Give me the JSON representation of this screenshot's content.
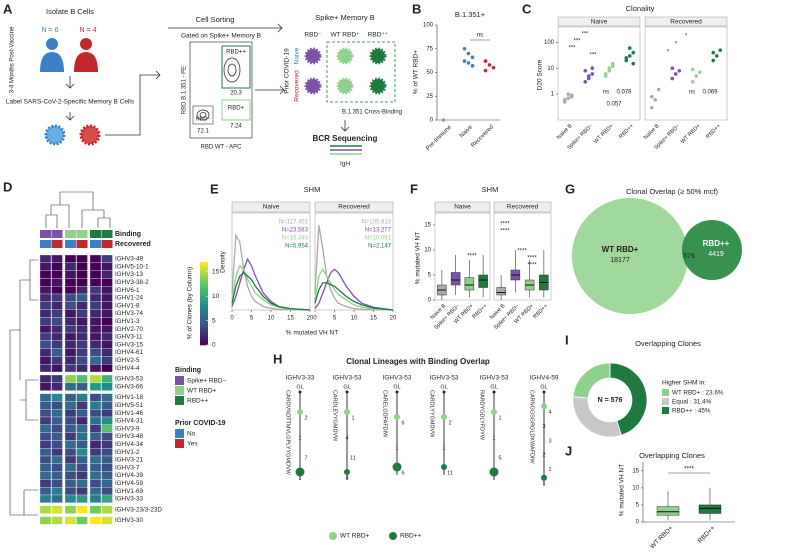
{
  "A": {
    "letter": "A",
    "timepoint": "3-4 Months Post-Vaccine",
    "isolate": "Isolate B Cells",
    "n_naive": "N = 6",
    "n_recovered": "N = 4",
    "label": "Label SARS-CoV-2-Specific Memory B Cells",
    "sorting": "Cell Sorting",
    "gate": "Gated on Spike+ Memory B",
    "gates": [
      {
        "name": "RBD++",
        "pct": "20.3"
      },
      {
        "name": "RBD−",
        "pct": "72.1"
      },
      {
        "name": "RBD+",
        "pct": "7.24"
      }
    ],
    "y_axis": "RBD B.1.351 - PE",
    "x_axis": "RBD WT - APC",
    "grid_title": "Spike+ Memory B",
    "grid_columns": [
      "RBD⁻",
      "WT RBD⁺",
      "RBD⁺⁺"
    ],
    "grid_rows_title": "Prior COVID-19",
    "grid_rows": [
      "Naive",
      "Recovered"
    ],
    "cross": "B.1.351 Cross-Binding",
    "bcr": "BCR Sequencing",
    "igh": "IgH"
  },
  "B": {
    "letter": "B",
    "title": "B.1.351+",
    "ylabel": "% of WT RBD+",
    "ylim": [
      0,
      100
    ],
    "yticks": [
      0,
      25,
      50,
      75,
      100
    ],
    "categories": [
      "Pre-Immune",
      "Naive",
      "Recovered"
    ],
    "colors": [
      "#999999",
      "#3b7fc4",
      "#c0282e"
    ],
    "points": [
      [
        0
      ],
      [
        75,
        70,
        66,
        62,
        60,
        57
      ],
      [
        62,
        58,
        55,
        52
      ]
    ],
    "annotation": "ns"
  },
  "C": {
    "letter": "C",
    "title": "Clonality",
    "facets": [
      "Naive",
      "Recovered"
    ],
    "ylabel": "D20 Score",
    "log": true,
    "ylim": [
      0.1,
      300
    ],
    "yticks": [
      1,
      10,
      100
    ],
    "categories": [
      "Naive B",
      "Spike+ RBD−",
      "WT RBD+",
      "RBD++"
    ],
    "colors": [
      "#aaaaaa",
      "#7b52ab",
      "#8fd18b",
      "#1f7a3f"
    ],
    "points": [
      [
        [
          0.5,
          0.7,
          0.8,
          0.6,
          1,
          0.9
        ],
        [
          3,
          5,
          6,
          8,
          4,
          10
        ],
        [
          5,
          8,
          12,
          6,
          10,
          15
        ],
        [
          20,
          30,
          40,
          25,
          60,
          15
        ]
      ],
      [
        [
          0.3,
          0.6,
          1.5,
          0.8
        ],
        [
          4,
          6,
          8,
          10
        ],
        [
          3,
          5,
          7,
          9
        ],
        [
          20,
          30,
          50,
          40
        ]
      ]
    ],
    "annotations": [
      [
        "***",
        "***",
        "***",
        "***",
        "ns",
        "0.078",
        "0.057"
      ],
      [
        "*",
        "*",
        "*",
        "ns",
        "0.069"
      ]
    ]
  },
  "D": {
    "letter": "D",
    "legend_title": "% of Clones (by Column)",
    "clim": [
      0,
      17
    ],
    "colorbar_ticks": [
      0,
      5,
      10,
      15
    ],
    "annotation_rows": [
      "Binding",
      "Recovered"
    ],
    "binding_title": "Binding",
    "binding": [
      "Spike+ RBD−",
      "WT RBD+",
      "RBD++"
    ],
    "binding_colors": [
      "#7b52ab",
      "#8fd18b",
      "#1f7a3f"
    ],
    "prior_title": "Prior COVID-19",
    "prior": [
      "No",
      "Yes"
    ],
    "prior_colors": [
      "#3b7fc4",
      "#c0282e"
    ],
    "genes": [
      "IGHV3-49",
      "IGHV5-10-1",
      "IGHV3-13",
      "IGHV3-38-2",
      "IGHV6-1",
      "IGHV1-24",
      "IGHV1-8",
      "IGHV3-74",
      "IGHV1-3",
      "IGHV2-70",
      "IGHV3-11",
      "IGHV3-15",
      "IGHV4-61",
      "IGHV2-5",
      "IGHV4-4",
      "IGHV3-53",
      "IGHV3-66",
      "IGHV1-18",
      "IGHV5-51",
      "IGHV1-46",
      "IGHV4-31",
      "IGHV3-9",
      "IGHV3-48",
      "IGHV4-34",
      "IGHV1-2",
      "IGHV3-21",
      "IGHV3-7",
      "IGHV4-39",
      "IGHV4-59",
      "IGHV1-69",
      "IGHV3-33",
      "IGHV3-23/3-23D",
      "IGHV3-30"
    ],
    "values": [
      [
        2,
        1,
        0,
        0,
        0,
        3
      ],
      [
        1,
        0,
        2,
        0,
        0,
        1
      ],
      [
        0,
        0,
        1,
        0,
        0,
        2
      ],
      [
        0,
        1,
        0,
        0,
        0,
        0
      ],
      [
        1,
        0,
        0,
        2,
        3,
        1
      ],
      [
        2,
        3,
        4,
        5,
        2,
        1
      ],
      [
        3,
        2,
        4,
        2,
        3,
        1
      ],
      [
        2,
        3,
        1,
        3,
        2,
        1
      ],
      [
        3,
        4,
        2,
        1,
        1,
        0
      ],
      [
        1,
        2,
        3,
        2,
        1,
        1
      ],
      [
        3,
        2,
        1,
        2,
        1,
        2
      ],
      [
        4,
        3,
        2,
        3,
        2,
        1
      ],
      [
        2,
        5,
        1,
        3,
        4,
        2
      ],
      [
        1,
        3,
        2,
        4,
        6,
        3
      ],
      [
        2,
        1,
        3,
        2,
        1,
        0
      ],
      [
        2,
        3,
        14,
        12,
        15,
        11
      ],
      [
        1,
        2,
        6,
        5,
        9,
        8
      ],
      [
        6,
        8,
        5,
        7,
        4,
        6
      ],
      [
        5,
        4,
        6,
        3,
        7,
        5
      ],
      [
        4,
        6,
        3,
        5,
        4,
        3
      ],
      [
        3,
        5,
        4,
        2,
        6,
        8
      ],
      [
        6,
        4,
        5,
        6,
        3,
        12
      ],
      [
        4,
        5,
        3,
        6,
        5,
        4
      ],
      [
        3,
        4,
        6,
        5,
        2,
        3
      ],
      [
        5,
        3,
        4,
        8,
        3,
        4
      ],
      [
        4,
        6,
        3,
        5,
        6,
        5
      ],
      [
        5,
        4,
        6,
        4,
        5,
        4
      ],
      [
        6,
        5,
        4,
        3,
        6,
        5
      ],
      [
        3,
        4,
        5,
        6,
        4,
        6
      ],
      [
        5,
        7,
        4,
        3,
        6,
        4
      ],
      [
        7,
        6,
        8,
        9,
        7,
        10
      ],
      [
        15,
        16,
        14,
        17,
        13,
        15
      ],
      [
        14,
        15,
        16,
        13,
        17,
        16
      ]
    ]
  },
  "E": {
    "letter": "E",
    "title": "SHM",
    "ylabel": "Density",
    "xlabel": "% mutated VH NT",
    "xlim": [
      0,
      20
    ],
    "xticks": [
      0,
      5,
      10,
      15,
      20
    ],
    "ylim": [
      0,
      0.28
    ],
    "colors": [
      "#aaaaaa",
      "#7b52ab",
      "#8fd18b",
      "#1f7a3f"
    ],
    "x": [
      0,
      1,
      2,
      3,
      4,
      5,
      6,
      8,
      10,
      12,
      15,
      20
    ],
    "facets": [
      {
        "name": "Naive",
        "n": [
          "N=117,451",
          "N=23,583",
          "N=15,340",
          "N=5,954"
        ],
        "density": [
          [
            0.05,
            0.22,
            0.2,
            0.12,
            0.07,
            0.04,
            0.025,
            0.01,
            0.005,
            0.002,
            0.001,
            0
          ],
          [
            0.01,
            0.04,
            0.08,
            0.12,
            0.15,
            0.13,
            0.1,
            0.05,
            0.025,
            0.01,
            0.004,
            0
          ],
          [
            0.03,
            0.1,
            0.13,
            0.12,
            0.09,
            0.07,
            0.05,
            0.03,
            0.015,
            0.008,
            0.003,
            0
          ],
          [
            0.02,
            0.07,
            0.1,
            0.11,
            0.1,
            0.09,
            0.07,
            0.04,
            0.02,
            0.01,
            0.004,
            0
          ]
        ]
      },
      {
        "name": "Recovered",
        "n": [
          "N=105,913",
          "N=13,277",
          "N=10,091",
          "N=2,147"
        ],
        "density": [
          [
            0.05,
            0.25,
            0.18,
            0.1,
            0.06,
            0.035,
            0.02,
            0.01,
            0.004,
            0.002,
            0.001,
            0
          ],
          [
            0.005,
            0.02,
            0.05,
            0.08,
            0.11,
            0.12,
            0.11,
            0.07,
            0.04,
            0.02,
            0.008,
            0
          ],
          [
            0.03,
            0.1,
            0.12,
            0.1,
            0.08,
            0.06,
            0.045,
            0.03,
            0.015,
            0.008,
            0.003,
            0
          ],
          [
            0.02,
            0.06,
            0.08,
            0.08,
            0.075,
            0.07,
            0.06,
            0.04,
            0.025,
            0.015,
            0.006,
            0
          ]
        ]
      }
    ]
  },
  "F": {
    "letter": "F",
    "title": "SHM",
    "facets": [
      "Naive",
      "Recovered"
    ],
    "ylabel": "% mutated VH NT",
    "ylim": [
      0,
      17
    ],
    "yticks": [
      0,
      5,
      10,
      15
    ],
    "categories": [
      "Naive B",
      "Spike+ RBD−",
      "WT RBD+",
      "RBD++"
    ],
    "colors": [
      "#aaaaaa",
      "#7b52ab",
      "#8fd18b",
      "#1f7a3f"
    ],
    "boxes": [
      [
        [
          0,
          1,
          2,
          3,
          6
        ],
        [
          1,
          3,
          4,
          5.5,
          9
        ],
        [
          0.5,
          2,
          3,
          4.5,
          8
        ],
        [
          0.5,
          2.5,
          4,
          5,
          9
        ]
      ],
      [
        [
          0,
          1,
          1.5,
          2.5,
          5
        ],
        [
          1.5,
          4,
          5,
          6,
          10
        ],
        [
          0.5,
          2,
          3,
          4,
          8
        ],
        [
          0.5,
          2,
          3.5,
          5,
          10
        ]
      ]
    ],
    "annotations": [
      "****",
      "****",
      "****",
      "****",
      "****",
      "****"
    ]
  },
  "G": {
    "letter": "G",
    "title": "Clonal Overlap (≥ 50% mcf)",
    "left": "WT RBD+",
    "left_n": "18177",
    "overlap": "576",
    "right": "RBD++",
    "right_n": "4419"
  },
  "H": {
    "letter": "H",
    "title": "Clonal Lineages with Binding Overlap",
    "lineages": [
      {
        "gene": "IGHV3-33",
        "cdr3": "CARDVNDTTMVLGPLYYGMDVW",
        "nodes": [
          "GL",
          "2",
          "1",
          "7",
          "1"
        ]
      },
      {
        "gene": "IGHV3-53",
        "cdr3": "CARDLEVYGMDVW",
        "nodes": [
          "GL",
          "1",
          "4",
          "11",
          "3"
        ]
      },
      {
        "gene": "IGHV3-53",
        "cdr3": "CARELGDFAFDIW",
        "nodes": [
          "GL",
          "6",
          "1",
          "6"
        ]
      },
      {
        "gene": "IGHV3-53",
        "cdr3": "CARDLYYGMDVW",
        "nodes": [
          "GL",
          "2",
          "1",
          "11"
        ]
      },
      {
        "gene": "IGHV3-53",
        "cdr3": "RARDYGDLYFDYW",
        "nodes": [
          "GL",
          "1",
          "1",
          "5",
          "7"
        ]
      },
      {
        "gene": "IGHV4-59",
        "cdr3": "CARNGGSGRGLDKWAFDIW",
        "nodes": [
          "GL",
          "4",
          "3",
          "3",
          "2",
          "1",
          "1"
        ]
      }
    ],
    "legend": [
      "WT RBD+",
      "RBD++"
    ]
  },
  "I": {
    "letter": "I",
    "title": "Overlapping Clones",
    "center": "N = 576",
    "legend_title": "Higher SHM in:",
    "values": [
      23.6,
      31.4,
      45
    ],
    "labels": [
      "WT RBD+ : 23.6%",
      "Equal : 31.4%",
      "RBD++ : 45%"
    ],
    "colors": [
      "#8fd18b",
      "#c8c8c8",
      "#1f7a3f"
    ]
  },
  "J": {
    "letter": "J",
    "title": "Overlapping Clones",
    "ylabel": "% mutated VH NT",
    "ylim": [
      0,
      17
    ],
    "yticks": [
      0,
      5,
      10,
      15
    ],
    "categories": [
      "WT RBD+",
      "RBD++"
    ],
    "colors": [
      "#8fd18b",
      "#1f7a3f"
    ],
    "boxes": [
      [
        0.5,
        2,
        3,
        4.5,
        9
      ],
      [
        0.5,
        2.5,
        4,
        5,
        10
      ]
    ],
    "annotation": "****"
  }
}
